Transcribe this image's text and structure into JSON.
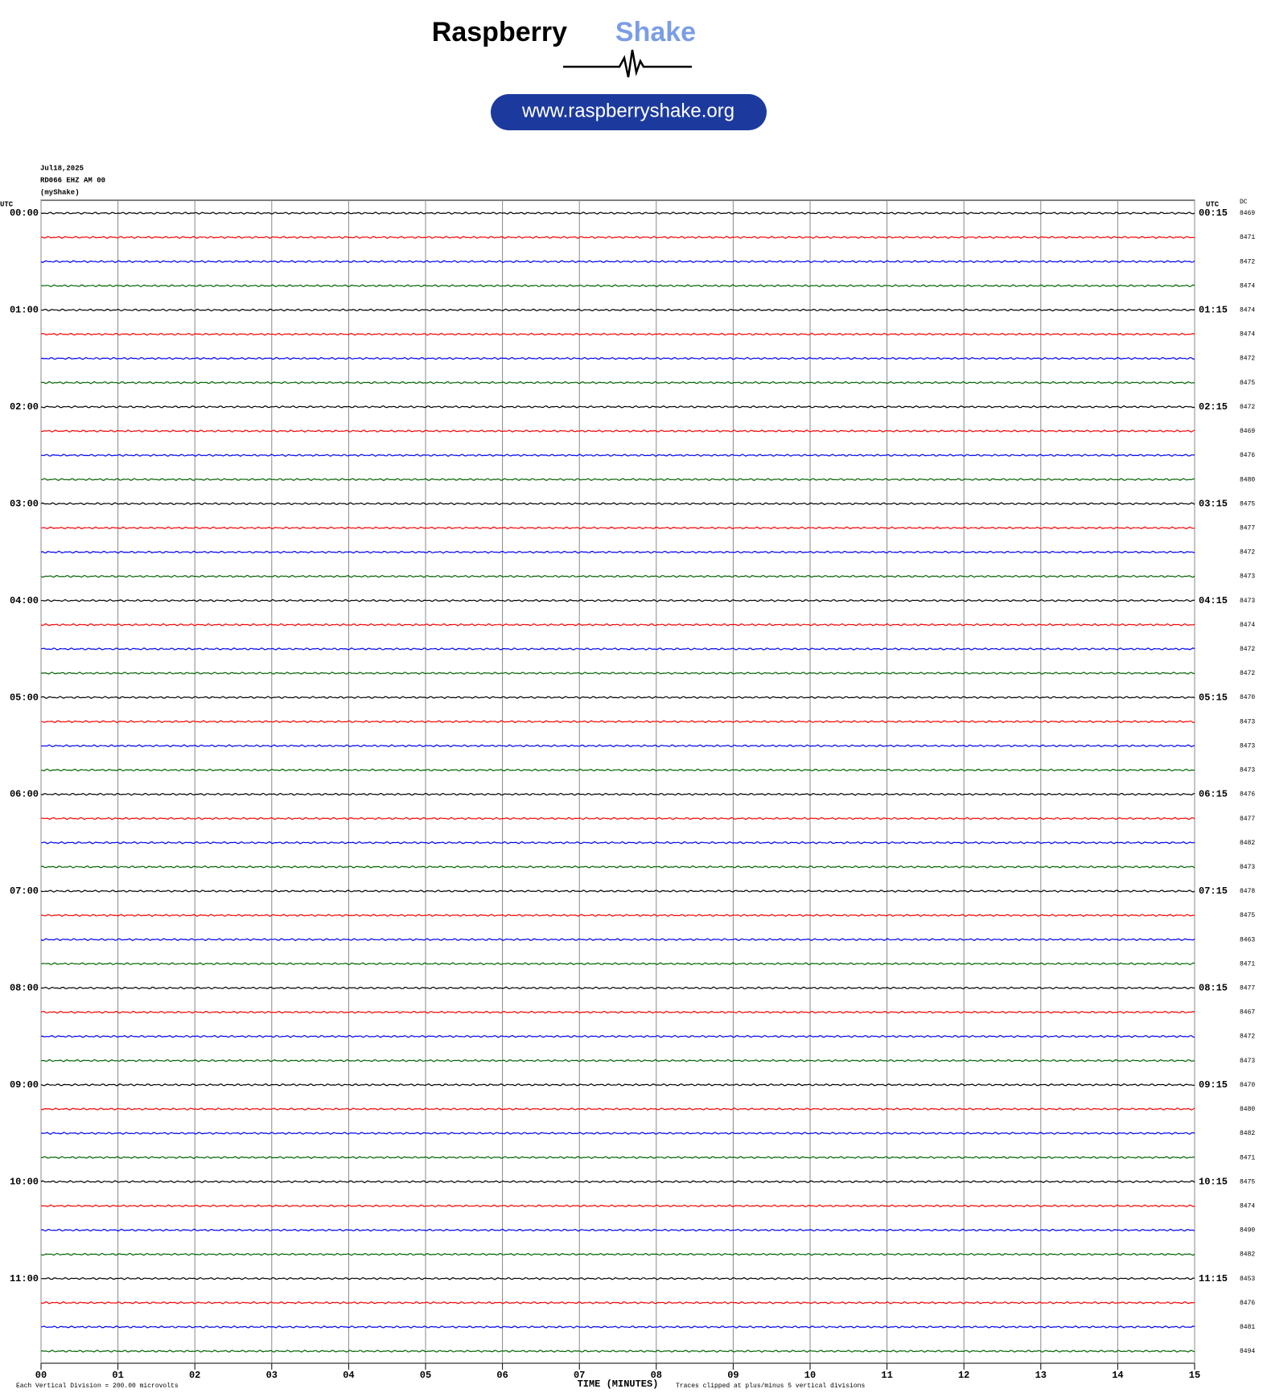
{
  "chart_data": {
    "type": "helicorder",
    "brand": "Raspberry",
    "brand_accent": "Shake",
    "url": "www.raspberryshake.org",
    "date": "Jul18,2025",
    "station": "RD066 EHZ AM 00",
    "owner": "(myShake)",
    "left_axis_title": "UTC",
    "right_axis_title": "UTC",
    "dc_title": "DC",
    "left_labels": [
      "00:00",
      "01:00",
      "02:00",
      "03:00",
      "04:00",
      "05:00",
      "06:00",
      "07:00",
      "08:00",
      "09:00",
      "10:00",
      "11:00"
    ],
    "right_labels": [
      "00:15",
      "01:15",
      "02:15",
      "03:15",
      "04:15",
      "05:15",
      "06:15",
      "07:15",
      "08:15",
      "09:15",
      "10:15",
      "11:15"
    ],
    "dc_values": [
      8469,
      8471,
      8472,
      8474,
      8474,
      8474,
      8472,
      8475,
      8472,
      8469,
      8476,
      8480,
      8475,
      8477,
      8472,
      8473,
      8473,
      8474,
      8472,
      8472,
      8470,
      8473,
      8473,
      8473,
      8476,
      8477,
      8482,
      8473,
      8478,
      8475,
      8463,
      8471,
      8477,
      8467,
      8472,
      8473,
      8470,
      8480,
      8482,
      8471,
      8475,
      8474,
      8490,
      8482,
      8453,
      8476,
      8481,
      8494
    ],
    "trace_colors": [
      "#000000",
      "#ff0000",
      "#0000ff",
      "#006400"
    ],
    "xlabel": "TIME (MINUTES)",
    "xlim": [
      0,
      15
    ],
    "xticks": [
      {
        "value": 0,
        "label": "00"
      },
      {
        "value": 1,
        "label": "01"
      },
      {
        "value": 2,
        "label": "02"
      },
      {
        "value": 3,
        "label": "03"
      },
      {
        "value": 4,
        "label": "04"
      },
      {
        "value": 5,
        "label": "05"
      },
      {
        "value": 6,
        "label": "06"
      },
      {
        "value": 7,
        "label": "07"
      },
      {
        "value": 8,
        "label": "08"
      },
      {
        "value": 9,
        "label": "09"
      },
      {
        "value": 10,
        "label": "10"
      },
      {
        "value": 11,
        "label": "11"
      },
      {
        "value": 12,
        "label": "12"
      },
      {
        "value": 13,
        "label": "13"
      },
      {
        "value": 14,
        "label": "14"
      },
      {
        "value": 15,
        "label": "15"
      }
    ],
    "scale_note": "Each Vertical Division =  200.00 microvolts",
    "clip_note": "Traces clipped at plus/minus 5 vertical divisions",
    "grid": true
  }
}
